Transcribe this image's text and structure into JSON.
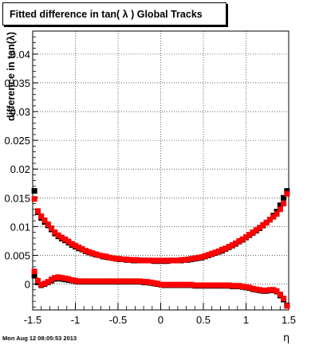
{
  "footer": {
    "timestamp": "Mon Aug 12 08:05:53 2013"
  },
  "chart_data": {
    "type": "scatter",
    "title": "Fitted difference in tan( λ )  Global Tracks",
    "xlabel": "η",
    "ylabel": "difference in tan(λ)",
    "xlim": [
      -1.5,
      1.5
    ],
    "ylim": [
      -0.0045,
      0.044
    ],
    "grid": true,
    "x_ticks": [
      -1.5,
      -1,
      -0.5,
      0,
      0.5,
      1,
      1.5
    ],
    "x_tick_labels": [
      "-1.5",
      "-1",
      "-0.5",
      "0",
      "0.5",
      "1",
      "1.5"
    ],
    "y_ticks": [
      0,
      0.005,
      0.01,
      0.015,
      0.02,
      0.025,
      0.03,
      0.035,
      0.04
    ],
    "y_tick_labels": [
      "0",
      "0.005",
      "0.01",
      "0.015",
      "0.02",
      "0.025",
      "0.03",
      "0.035",
      "0.04"
    ],
    "marker": "square",
    "series": [
      {
        "color": "#000000",
        "points": [
          [
            -1.48,
            0.0162
          ],
          [
            -1.44,
            0.0125
          ],
          [
            -1.4,
            0.0115
          ],
          [
            -1.36,
            0.0108
          ],
          [
            -1.32,
            0.0102
          ],
          [
            -1.28,
            0.0095
          ],
          [
            -1.24,
            0.0088
          ],
          [
            -1.2,
            0.0083
          ],
          [
            -1.16,
            0.0079
          ],
          [
            -1.12,
            0.0076
          ],
          [
            -1.08,
            0.0072
          ],
          [
            -1.04,
            0.0068
          ],
          [
            -1.0,
            0.0065
          ],
          [
            -0.96,
            0.0062
          ],
          [
            -0.92,
            0.006
          ],
          [
            -0.88,
            0.0057
          ],
          [
            -0.84,
            0.0055
          ],
          [
            -0.8,
            0.0053
          ],
          [
            -0.76,
            0.0051
          ],
          [
            -0.72,
            0.005
          ],
          [
            -0.68,
            0.0048
          ],
          [
            -0.64,
            0.0047
          ],
          [
            -0.6,
            0.0046
          ],
          [
            -0.56,
            0.0045
          ],
          [
            -0.52,
            0.0044
          ],
          [
            -0.48,
            0.0043
          ],
          [
            -0.44,
            0.0043
          ],
          [
            -0.4,
            0.0042
          ],
          [
            -0.36,
            0.0042
          ],
          [
            -0.32,
            0.0041
          ],
          [
            -0.28,
            0.0041
          ],
          [
            -0.24,
            0.0041
          ],
          [
            -0.2,
            0.0041
          ],
          [
            -0.16,
            0.0041
          ],
          [
            -0.12,
            0.0041
          ],
          [
            -0.08,
            0.004
          ],
          [
            -0.04,
            0.004
          ],
          [
            0.0,
            0.004
          ],
          [
            0.04,
            0.004
          ],
          [
            0.08,
            0.004
          ],
          [
            0.12,
            0.0041
          ],
          [
            0.16,
            0.0041
          ],
          [
            0.2,
            0.0041
          ],
          [
            0.24,
            0.0041
          ],
          [
            0.28,
            0.0042
          ],
          [
            0.32,
            0.0042
          ],
          [
            0.36,
            0.0043
          ],
          [
            0.4,
            0.0044
          ],
          [
            0.44,
            0.0045
          ],
          [
            0.48,
            0.0046
          ],
          [
            0.52,
            0.0048
          ],
          [
            0.56,
            0.005
          ],
          [
            0.6,
            0.0052
          ],
          [
            0.64,
            0.0054
          ],
          [
            0.68,
            0.0056
          ],
          [
            0.72,
            0.0058
          ],
          [
            0.76,
            0.0061
          ],
          [
            0.8,
            0.0064
          ],
          [
            0.84,
            0.0067
          ],
          [
            0.88,
            0.007
          ],
          [
            0.92,
            0.0074
          ],
          [
            0.96,
            0.0077
          ],
          [
            1.0,
            0.0081
          ],
          [
            1.04,
            0.0085
          ],
          [
            1.08,
            0.0089
          ],
          [
            1.12,
            0.0093
          ],
          [
            1.16,
            0.0097
          ],
          [
            1.2,
            0.0102
          ],
          [
            1.24,
            0.0107
          ],
          [
            1.28,
            0.0112
          ],
          [
            1.32,
            0.0119
          ],
          [
            1.36,
            0.0126
          ],
          [
            1.4,
            0.0137
          ],
          [
            1.44,
            0.015
          ],
          [
            1.48,
            0.0162
          ],
          [
            -1.48,
            0.0015
          ],
          [
            -1.44,
            0.0003
          ],
          [
            -1.4,
            -0.0002
          ],
          [
            -1.36,
            0.0
          ],
          [
            -1.32,
            0.0003
          ],
          [
            -1.28,
            0.0006
          ],
          [
            -1.24,
            0.0009
          ],
          [
            -1.2,
            0.001
          ],
          [
            -1.16,
            0.0009
          ],
          [
            -1.12,
            0.0008
          ],
          [
            -1.08,
            0.0007
          ],
          [
            -1.04,
            0.0006
          ],
          [
            -1.0,
            0.0005
          ],
          [
            -0.96,
            0.0004
          ],
          [
            -0.92,
            0.0004
          ],
          [
            -0.88,
            0.0004
          ],
          [
            -0.84,
            0.0004
          ],
          [
            -0.8,
            0.0004
          ],
          [
            -0.76,
            0.0004
          ],
          [
            -0.72,
            0.0004
          ],
          [
            -0.68,
            0.0004
          ],
          [
            -0.64,
            0.0004
          ],
          [
            -0.6,
            0.0004
          ],
          [
            -0.56,
            0.0004
          ],
          [
            -0.52,
            0.0004
          ],
          [
            -0.48,
            0.0004
          ],
          [
            -0.44,
            0.0004
          ],
          [
            -0.4,
            0.0004
          ],
          [
            -0.36,
            0.0004
          ],
          [
            -0.32,
            0.0004
          ],
          [
            -0.28,
            0.0004
          ],
          [
            -0.24,
            0.0004
          ],
          [
            -0.2,
            0.0003
          ],
          [
            -0.16,
            0.0003
          ],
          [
            -0.12,
            0.0002
          ],
          [
            -0.08,
            0.0001
          ],
          [
            -0.04,
            0.0
          ],
          [
            0.0,
            -0.0001
          ],
          [
            0.04,
            -0.0002
          ],
          [
            0.08,
            -0.0002
          ],
          [
            0.12,
            -0.0002
          ],
          [
            0.16,
            -0.0002
          ],
          [
            0.2,
            -0.0002
          ],
          [
            0.24,
            -0.0002
          ],
          [
            0.28,
            -0.0002
          ],
          [
            0.32,
            -0.0002
          ],
          [
            0.36,
            -0.0002
          ],
          [
            0.4,
            -0.0003
          ],
          [
            0.44,
            -0.0003
          ],
          [
            0.48,
            -0.0003
          ],
          [
            0.52,
            -0.0003
          ],
          [
            0.56,
            -0.0003
          ],
          [
            0.6,
            -0.0003
          ],
          [
            0.64,
            -0.0003
          ],
          [
            0.68,
            -0.0003
          ],
          [
            0.72,
            -0.0003
          ],
          [
            0.76,
            -0.0003
          ],
          [
            0.8,
            -0.0003
          ],
          [
            0.84,
            -0.0004
          ],
          [
            0.88,
            -0.0004
          ],
          [
            0.92,
            -0.0004
          ],
          [
            0.96,
            -0.0005
          ],
          [
            1.0,
            -0.0006
          ],
          [
            1.04,
            -0.0007
          ],
          [
            1.08,
            -0.0009
          ],
          [
            1.12,
            -0.001
          ],
          [
            1.16,
            -0.0011
          ],
          [
            1.2,
            -0.0012
          ],
          [
            1.24,
            -0.0012
          ],
          [
            1.28,
            -0.0011
          ],
          [
            1.32,
            -0.0011
          ],
          [
            1.36,
            -0.0013
          ],
          [
            1.4,
            -0.002
          ],
          [
            1.44,
            -0.0027
          ],
          [
            1.48,
            -0.0037
          ]
        ]
      },
      {
        "color": "#ff0000",
        "points": [
          [
            -1.48,
            0.0148
          ],
          [
            -1.44,
            0.0127
          ],
          [
            -1.4,
            0.0118
          ],
          [
            -1.36,
            0.0111
          ],
          [
            -1.32,
            0.0104
          ],
          [
            -1.28,
            0.0097
          ],
          [
            -1.24,
            0.009
          ],
          [
            -1.2,
            0.0085
          ],
          [
            -1.16,
            0.0081
          ],
          [
            -1.12,
            0.0078
          ],
          [
            -1.08,
            0.0074
          ],
          [
            -1.04,
            0.007
          ],
          [
            -1.0,
            0.0067
          ],
          [
            -0.96,
            0.0064
          ],
          [
            -0.92,
            0.0061
          ],
          [
            -0.88,
            0.0058
          ],
          [
            -0.84,
            0.0056
          ],
          [
            -0.8,
            0.0054
          ],
          [
            -0.76,
            0.0052
          ],
          [
            -0.72,
            0.005
          ],
          [
            -0.68,
            0.0049
          ],
          [
            -0.64,
            0.0048
          ],
          [
            -0.6,
            0.0046
          ],
          [
            -0.56,
            0.0045
          ],
          [
            -0.52,
            0.0044
          ],
          [
            -0.48,
            0.0044
          ],
          [
            -0.44,
            0.0043
          ],
          [
            -0.4,
            0.0043
          ],
          [
            -0.36,
            0.0042
          ],
          [
            -0.32,
            0.0042
          ],
          [
            -0.28,
            0.0042
          ],
          [
            -0.24,
            0.0041
          ],
          [
            -0.2,
            0.0041
          ],
          [
            -0.16,
            0.0041
          ],
          [
            -0.12,
            0.0041
          ],
          [
            -0.08,
            0.0041
          ],
          [
            -0.04,
            0.0041
          ],
          [
            0.0,
            0.0041
          ],
          [
            0.04,
            0.0041
          ],
          [
            0.08,
            0.0041
          ],
          [
            0.12,
            0.0041
          ],
          [
            0.16,
            0.0041
          ],
          [
            0.2,
            0.0041
          ],
          [
            0.24,
            0.0042
          ],
          [
            0.28,
            0.0042
          ],
          [
            0.32,
            0.0043
          ],
          [
            0.36,
            0.0044
          ],
          [
            0.4,
            0.0045
          ],
          [
            0.44,
            0.0046
          ],
          [
            0.48,
            0.0047
          ],
          [
            0.52,
            0.0049
          ],
          [
            0.56,
            0.0051
          ],
          [
            0.6,
            0.0053
          ],
          [
            0.64,
            0.0055
          ],
          [
            0.68,
            0.0057
          ],
          [
            0.72,
            0.006
          ],
          [
            0.76,
            0.0062
          ],
          [
            0.8,
            0.0065
          ],
          [
            0.84,
            0.0068
          ],
          [
            0.88,
            0.0071
          ],
          [
            0.92,
            0.0075
          ],
          [
            0.96,
            0.0078
          ],
          [
            1.0,
            0.0082
          ],
          [
            1.04,
            0.0086
          ],
          [
            1.08,
            0.009
          ],
          [
            1.12,
            0.0094
          ],
          [
            1.16,
            0.0098
          ],
          [
            1.2,
            0.0103
          ],
          [
            1.24,
            0.0107
          ],
          [
            1.28,
            0.0112
          ],
          [
            1.32,
            0.0117
          ],
          [
            1.36,
            0.0122
          ],
          [
            1.4,
            0.013
          ],
          [
            1.44,
            0.014
          ],
          [
            1.48,
            0.0157
          ],
          [
            -1.48,
            0.0022
          ],
          [
            -1.44,
            0.0006
          ],
          [
            -1.4,
            -0.0001
          ],
          [
            -1.36,
            0.0001
          ],
          [
            -1.32,
            0.0004
          ],
          [
            -1.28,
            0.0008
          ],
          [
            -1.24,
            0.0011
          ],
          [
            -1.2,
            0.0012
          ],
          [
            -1.16,
            0.0011
          ],
          [
            -1.12,
            0.001
          ],
          [
            -1.08,
            0.0009
          ],
          [
            -1.04,
            0.0007
          ],
          [
            -1.0,
            0.0006
          ],
          [
            -0.96,
            0.0005
          ],
          [
            -0.92,
            0.0005
          ],
          [
            -0.88,
            0.0005
          ],
          [
            -0.84,
            0.0005
          ],
          [
            -0.8,
            0.0005
          ],
          [
            -0.76,
            0.0005
          ],
          [
            -0.72,
            0.0005
          ],
          [
            -0.68,
            0.0005
          ],
          [
            -0.64,
            0.0005
          ],
          [
            -0.6,
            0.0005
          ],
          [
            -0.56,
            0.0005
          ],
          [
            -0.52,
            0.0005
          ],
          [
            -0.48,
            0.0005
          ],
          [
            -0.44,
            0.0005
          ],
          [
            -0.4,
            0.0005
          ],
          [
            -0.36,
            0.0005
          ],
          [
            -0.32,
            0.0005
          ],
          [
            -0.28,
            0.0005
          ],
          [
            -0.24,
            0.0005
          ],
          [
            -0.2,
            0.0004
          ],
          [
            -0.16,
            0.0004
          ],
          [
            -0.12,
            0.0003
          ],
          [
            -0.08,
            0.0002
          ],
          [
            -0.04,
            0.0001
          ],
          [
            0.0,
            -0.0001
          ],
          [
            0.04,
            -0.0001
          ],
          [
            0.08,
            -0.0001
          ],
          [
            0.12,
            -0.0001
          ],
          [
            0.16,
            -0.0001
          ],
          [
            0.2,
            -0.0001
          ],
          [
            0.24,
            -0.0001
          ],
          [
            0.28,
            -0.0001
          ],
          [
            0.32,
            -0.0001
          ],
          [
            0.36,
            -0.0001
          ],
          [
            0.4,
            -0.0002
          ],
          [
            0.44,
            -0.0002
          ],
          [
            0.48,
            -0.0002
          ],
          [
            0.52,
            -0.0002
          ],
          [
            0.56,
            -0.0002
          ],
          [
            0.6,
            -0.0002
          ],
          [
            0.64,
            -0.0002
          ],
          [
            0.68,
            -0.0002
          ],
          [
            0.72,
            -0.0002
          ],
          [
            0.76,
            -0.0002
          ],
          [
            0.8,
            -0.0002
          ],
          [
            0.84,
            -0.0003
          ],
          [
            0.88,
            -0.0003
          ],
          [
            0.92,
            -0.0003
          ],
          [
            0.96,
            -0.0004
          ],
          [
            1.0,
            -0.0005
          ],
          [
            1.04,
            -0.0006
          ],
          [
            1.08,
            -0.0008
          ],
          [
            1.12,
            -0.0009
          ],
          [
            1.16,
            -0.001
          ],
          [
            1.2,
            -0.0011
          ],
          [
            1.24,
            -0.0011
          ],
          [
            1.28,
            -0.001
          ],
          [
            1.32,
            -0.001
          ],
          [
            1.36,
            -0.0012
          ],
          [
            1.4,
            -0.0018
          ],
          [
            1.44,
            -0.0025
          ],
          [
            1.48,
            -0.0038
          ]
        ]
      }
    ]
  }
}
